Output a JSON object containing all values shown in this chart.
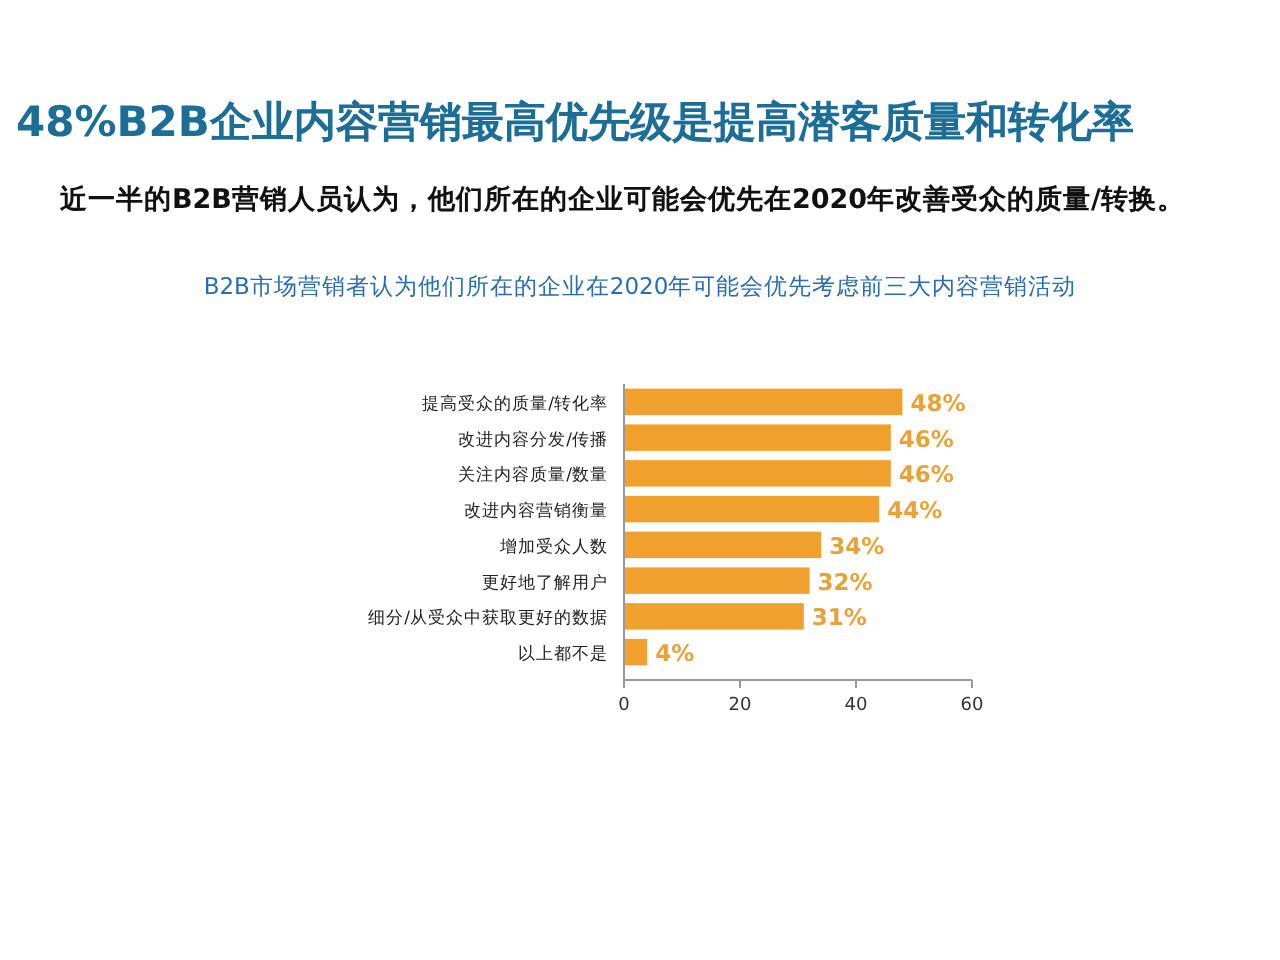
{
  "chart_data": {
    "type": "bar",
    "orientation": "horizontal",
    "title": "48%B2B企业内容营销最高优先级是提高潜客质量和转化率",
    "subtitle": "近一半的B2B营销人员认为，他们所在的企业可能会优先在2020年改善受众的质量/转换。",
    "annotations": [
      "B2B市场营销者认为他们所在的企业在2020年可能会优先考虑前三大内容营销活动"
    ],
    "categories": [
      "提高受众的质量/转化率",
      "改进内容分发/传播",
      "关注内容质量/数量",
      "改进内容营销衡量",
      "增加受众人数",
      "更好地了解用户",
      "细分/从受众中获取更好的数据",
      "以上都不是"
    ],
    "values": [
      48,
      46,
      46,
      44,
      34,
      32,
      31,
      4
    ],
    "value_labels": [
      "48%",
      "46%",
      "46%",
      "44%",
      "34%",
      "32%",
      "31%",
      "4%"
    ],
    "color": "#f0a02c",
    "xlim": [
      0,
      60
    ],
    "xticks": [
      0,
      20,
      40,
      60
    ],
    "grid": false
  }
}
